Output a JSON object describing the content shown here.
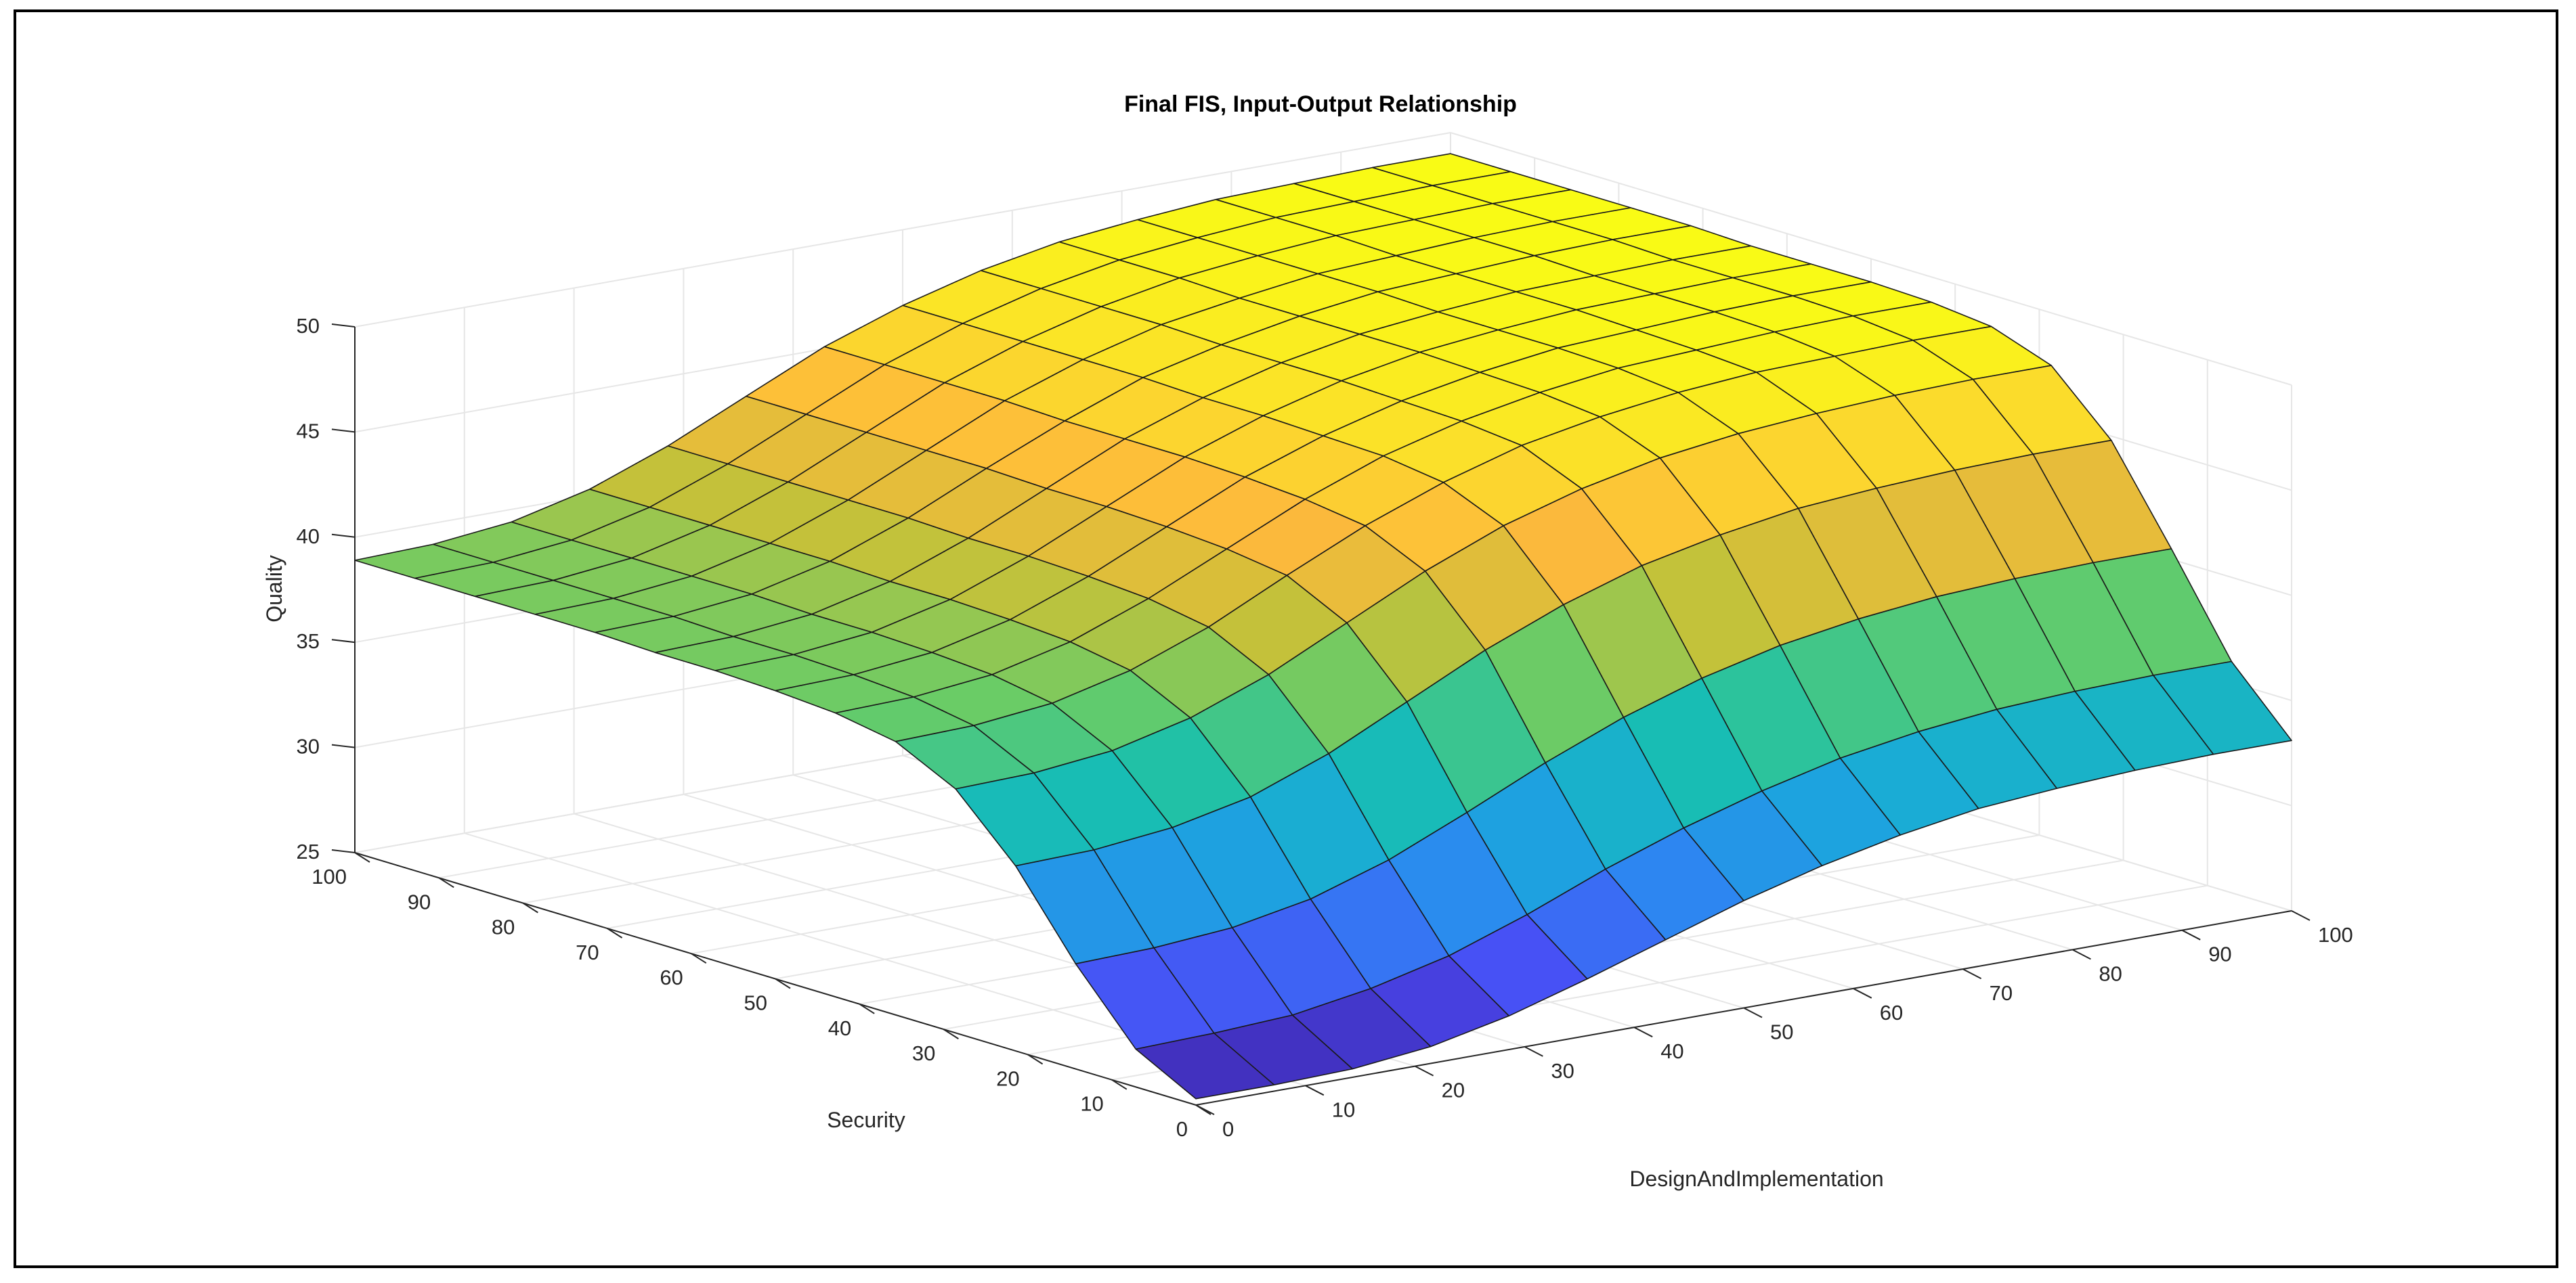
{
  "chart_data": {
    "type": "surface",
    "title": "Final FIS, Input-Output Relationship",
    "xlabel": "DesignAndImplementation",
    "ylabel": "Security",
    "zlabel": "Quality",
    "xlim": [
      0,
      100
    ],
    "ylim": [
      0,
      100
    ],
    "zlim": [
      25,
      50
    ],
    "xticks": [
      "0",
      "10",
      "20",
      "30",
      "40",
      "50",
      "60",
      "70",
      "80",
      "90",
      "100"
    ],
    "yticks": [
      "0",
      "10",
      "20",
      "30",
      "40",
      "50",
      "60",
      "70",
      "80",
      "90",
      "100"
    ],
    "zticks": [
      "25",
      "30",
      "35",
      "40",
      "45",
      "50"
    ],
    "grid": true,
    "colormap": [
      "#3e26a8",
      "#4a4bf5",
      "#2f83f3",
      "#1aa8dc",
      "#18c0ae",
      "#67cc68",
      "#c8c138",
      "#fdb93c",
      "#fbdf2a",
      "#f9fb15"
    ],
    "x": [
      0,
      7.14,
      14.29,
      21.43,
      28.57,
      35.71,
      42.86,
      50,
      57.14,
      64.29,
      71.43,
      78.57,
      85.71,
      92.86,
      100
    ],
    "y": [
      0,
      7.14,
      14.29,
      21.43,
      28.57,
      35.71,
      42.86,
      50,
      57.14,
      64.29,
      71.43,
      78.57,
      85.71,
      92.86,
      100
    ],
    "z_rows": [
      [
        25.3,
        25.3,
        25.4,
        25.8,
        26.6,
        27.7,
        28.9,
        30.1,
        31.1,
        31.9,
        32.5,
        32.8,
        33.0,
        33.1,
        33.1
      ],
      [
        26.8,
        26.9,
        27.1,
        27.7,
        28.6,
        29.9,
        31.4,
        32.7,
        33.8,
        34.7,
        35.3,
        35.7,
        35.9,
        36.0,
        36.0
      ],
      [
        30.0,
        30.1,
        30.4,
        31.1,
        32.3,
        33.9,
        35.6,
        37.1,
        38.3,
        39.2,
        39.8,
        40.2,
        40.4,
        40.5,
        40.5
      ],
      [
        33.8,
        33.9,
        34.3,
        35.1,
        36.5,
        38.3,
        40.1,
        41.6,
        42.8,
        43.6,
        44.2,
        44.5,
        44.7,
        44.8,
        44.8
      ],
      [
        36.6,
        36.7,
        37.1,
        38.0,
        39.4,
        41.2,
        43.0,
        44.5,
        45.6,
        46.4,
        46.9,
        47.2,
        47.4,
        47.5,
        47.5
      ],
      [
        38.0,
        38.1,
        38.5,
        39.4,
        40.8,
        42.6,
        44.3,
        45.7,
        46.8,
        47.5,
        48.0,
        48.3,
        48.4,
        48.5,
        48.5
      ],
      [
        38.5,
        38.6,
        39.0,
        39.9,
        41.3,
        43.0,
        44.7,
        46.1,
        47.1,
        47.8,
        48.3,
        48.5,
        48.7,
        48.8,
        48.8
      ],
      [
        38.7,
        38.8,
        39.2,
        40.1,
        41.5,
        43.2,
        44.9,
        46.2,
        47.2,
        47.9,
        48.4,
        48.6,
        48.8,
        48.9,
        48.9
      ],
      [
        38.8,
        38.9,
        39.3,
        40.2,
        41.6,
        43.3,
        45.0,
        46.3,
        47.3,
        48.0,
        48.4,
        48.7,
        48.8,
        48.9,
        48.9
      ],
      [
        38.8,
        38.9,
        39.3,
        40.2,
        41.6,
        43.3,
        45.0,
        46.3,
        47.3,
        48.0,
        48.4,
        48.7,
        48.8,
        48.9,
        48.9
      ],
      [
        38.9,
        39.0,
        39.4,
        40.3,
        41.7,
        43.4,
        45.0,
        46.4,
        47.3,
        48.0,
        48.5,
        48.7,
        48.9,
        49.0,
        49.0
      ],
      [
        38.9,
        39.0,
        39.4,
        40.3,
        41.7,
        43.4,
        45.1,
        46.4,
        47.4,
        48.0,
        48.5,
        48.7,
        48.9,
        49.0,
        49.0
      ],
      [
        38.9,
        39.0,
        39.4,
        40.3,
        41.7,
        43.4,
        45.1,
        46.4,
        47.4,
        48.1,
        48.5,
        48.8,
        48.9,
        49.0,
        49.0
      ],
      [
        38.9,
        39.0,
        39.4,
        40.3,
        41.7,
        43.4,
        45.1,
        46.4,
        47.4,
        48.1,
        48.5,
        48.8,
        48.9,
        49.0,
        49.0
      ],
      [
        38.9,
        39.0,
        39.4,
        40.3,
        41.7,
        43.4,
        45.1,
        46.4,
        47.4,
        48.1,
        48.5,
        48.8,
        48.9,
        49.0,
        49.0
      ]
    ]
  }
}
